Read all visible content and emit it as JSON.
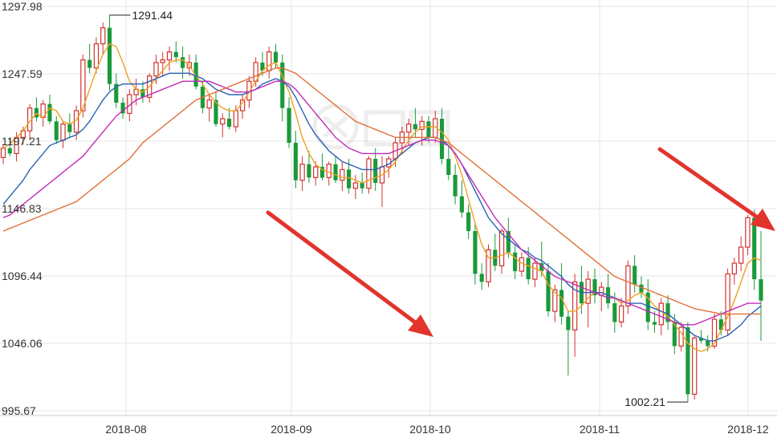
{
  "chart_data": {
    "type": "candlestick",
    "y_ticks": [
      "1297.98",
      "1247.59",
      "1197.21",
      "1146.83",
      "1096.44",
      "1046.06",
      "995.67"
    ],
    "ylim": [
      995.67,
      1297.98
    ],
    "x_ticks": [
      "2018-08",
      "2018-09",
      "2018-10",
      "2018-11",
      "2018-12"
    ],
    "annotations": [
      {
        "label": "1291.44",
        "value": 1291.44,
        "type": "high"
      },
      {
        "label": "1002.21",
        "value": 1002.21,
        "type": "low"
      }
    ],
    "colors": {
      "up": "#d0332e",
      "down": "#1a9a3a",
      "ma1": "#f0a020",
      "ma2": "#2c62b4",
      "ma3": "#c02ab8",
      "ma4": "#e0703a",
      "arrow": "#e2342b",
      "grid": "#e6e6e6"
    },
    "candles": [
      [
        1185,
        1195,
        1180,
        1192
      ],
      [
        1192,
        1200,
        1186,
        1188
      ],
      [
        1188,
        1204,
        1182,
        1200
      ],
      [
        1200,
        1208,
        1195,
        1205
      ],
      [
        1205,
        1225,
        1198,
        1222
      ],
      [
        1222,
        1230,
        1212,
        1215
      ],
      [
        1215,
        1228,
        1208,
        1225
      ],
      [
        1225,
        1232,
        1210,
        1212
      ],
      [
        1212,
        1216,
        1195,
        1198
      ],
      [
        1198,
        1212,
        1192,
        1210
      ],
      [
        1210,
        1218,
        1200,
        1204
      ],
      [
        1204,
        1224,
        1198,
        1220
      ],
      [
        1220,
        1262,
        1215,
        1258
      ],
      [
        1258,
        1270,
        1248,
        1252
      ],
      [
        1252,
        1275,
        1248,
        1270
      ],
      [
        1270,
        1286,
        1262,
        1282
      ],
      [
        1282,
        1291.44,
        1235,
        1240
      ],
      [
        1240,
        1248,
        1222,
        1226
      ],
      [
        1226,
        1230,
        1214,
        1218
      ],
      [
        1218,
        1236,
        1212,
        1232
      ],
      [
        1232,
        1244,
        1224,
        1236
      ],
      [
        1236,
        1242,
        1226,
        1230
      ],
      [
        1230,
        1248,
        1226,
        1246
      ],
      [
        1246,
        1262,
        1240,
        1256
      ],
      [
        1256,
        1264,
        1246,
        1258
      ],
      [
        1258,
        1268,
        1250,
        1264
      ],
      [
        1264,
        1272,
        1256,
        1260
      ],
      [
        1260,
        1268,
        1244,
        1252
      ],
      [
        1252,
        1262,
        1246,
        1256
      ],
      [
        1256,
        1262,
        1236,
        1238
      ],
      [
        1238,
        1242,
        1218,
        1222
      ],
      [
        1222,
        1232,
        1212,
        1228
      ],
      [
        1228,
        1234,
        1208,
        1210
      ],
      [
        1210,
        1218,
        1200,
        1214
      ],
      [
        1214,
        1222,
        1206,
        1208
      ],
      [
        1208,
        1224,
        1204,
        1220
      ],
      [
        1220,
        1232,
        1214,
        1228
      ],
      [
        1228,
        1246,
        1222,
        1242
      ],
      [
        1242,
        1260,
        1238,
        1256
      ],
      [
        1256,
        1264,
        1246,
        1250
      ],
      [
        1250,
        1268,
        1244,
        1264
      ],
      [
        1264,
        1270,
        1252,
        1256
      ],
      [
        1256,
        1262,
        1212,
        1222
      ],
      [
        1222,
        1230,
        1192,
        1196
      ],
      [
        1196,
        1205,
        1162,
        1168
      ],
      [
        1168,
        1186,
        1160,
        1180
      ],
      [
        1180,
        1190,
        1166,
        1170
      ],
      [
        1170,
        1182,
        1164,
        1178
      ],
      [
        1178,
        1188,
        1168,
        1170
      ],
      [
        1170,
        1182,
        1164,
        1180
      ],
      [
        1180,
        1186,
        1166,
        1168
      ],
      [
        1168,
        1182,
        1160,
        1176
      ],
      [
        1176,
        1184,
        1158,
        1162
      ],
      [
        1162,
        1172,
        1154,
        1166
      ],
      [
        1166,
        1174,
        1158,
        1162
      ],
      [
        1162,
        1186,
        1158,
        1184
      ],
      [
        1184,
        1192,
        1160,
        1166
      ],
      [
        1166,
        1186,
        1148,
        1178
      ],
      [
        1178,
        1186,
        1170,
        1184
      ],
      [
        1184,
        1200,
        1178,
        1196
      ],
      [
        1196,
        1208,
        1188,
        1204
      ],
      [
        1204,
        1214,
        1194,
        1210
      ],
      [
        1210,
        1222,
        1200,
        1206
      ],
      [
        1206,
        1216,
        1194,
        1212
      ],
      [
        1212,
        1216,
        1196,
        1200
      ],
      [
        1200,
        1220,
        1196,
        1214
      ],
      [
        1214,
        1222,
        1180,
        1184
      ],
      [
        1184,
        1194,
        1168,
        1172
      ],
      [
        1172,
        1180,
        1150,
        1156
      ],
      [
        1156,
        1168,
        1140,
        1144
      ],
      [
        1144,
        1150,
        1124,
        1130
      ],
      [
        1130,
        1136,
        1090,
        1098
      ],
      [
        1098,
        1106,
        1086,
        1092
      ],
      [
        1092,
        1120,
        1088,
        1116
      ],
      [
        1116,
        1128,
        1100,
        1104
      ],
      [
        1104,
        1132,
        1098,
        1130
      ],
      [
        1130,
        1140,
        1110,
        1114
      ],
      [
        1114,
        1120,
        1094,
        1100
      ],
      [
        1100,
        1114,
        1096,
        1110
      ],
      [
        1110,
        1118,
        1090,
        1094
      ],
      [
        1094,
        1110,
        1088,
        1106
      ],
      [
        1106,
        1122,
        1096,
        1100
      ],
      [
        1100,
        1106,
        1066,
        1070
      ],
      [
        1070,
        1090,
        1062,
        1086
      ],
      [
        1086,
        1106,
        1060,
        1066
      ],
      [
        1066,
        1070,
        1022,
        1056
      ],
      [
        1056,
        1098,
        1036,
        1092
      ],
      [
        1092,
        1104,
        1068,
        1076
      ],
      [
        1076,
        1100,
        1058,
        1094
      ],
      [
        1094,
        1102,
        1076,
        1082
      ],
      [
        1082,
        1092,
        1070,
        1088
      ],
      [
        1088,
        1098,
        1072,
        1076
      ],
      [
        1076,
        1084,
        1054,
        1062
      ],
      [
        1062,
        1080,
        1058,
        1074
      ],
      [
        1074,
        1108,
        1068,
        1104
      ],
      [
        1104,
        1112,
        1084,
        1090
      ],
      [
        1090,
        1096,
        1080,
        1084
      ],
      [
        1084,
        1094,
        1056,
        1062
      ],
      [
        1062,
        1070,
        1054,
        1060
      ],
      [
        1060,
        1080,
        1052,
        1076
      ],
      [
        1076,
        1082,
        1056,
        1062
      ],
      [
        1062,
        1068,
        1038,
        1044
      ],
      [
        1044,
        1062,
        1040,
        1058
      ],
      [
        1058,
        1062,
        1002.21,
        1008
      ],
      [
        1008,
        1052,
        1004,
        1050
      ],
      [
        1050,
        1056,
        1046,
        1048
      ],
      [
        1048,
        1052,
        1040,
        1044
      ],
      [
        1044,
        1068,
        1042,
        1064
      ],
      [
        1064,
        1070,
        1052,
        1056
      ],
      [
        1056,
        1102,
        1052,
        1098
      ],
      [
        1098,
        1110,
        1090,
        1106
      ],
      [
        1106,
        1126,
        1100,
        1118
      ],
      [
        1118,
        1142,
        1112,
        1140
      ],
      [
        1140,
        1146,
        1086,
        1094
      ],
      [
        1094,
        1130,
        1048,
        1078
      ]
    ],
    "ma_series": [
      [
        1192,
        1195,
        1200,
        1205,
        1212,
        1218,
        1215,
        1222,
        1220,
        1212,
        1210,
        1213,
        1222,
        1236,
        1250,
        1262,
        1270,
        1268,
        1256,
        1242,
        1236,
        1234,
        1238,
        1244,
        1250,
        1256,
        1258,
        1258,
        1254,
        1246,
        1240,
        1232,
        1226,
        1222,
        1220,
        1220,
        1226,
        1234,
        1242,
        1250,
        1254,
        1256,
        1246,
        1234,
        1218,
        1200,
        1188,
        1180,
        1176,
        1174,
        1172,
        1170,
        1170,
        1168,
        1166,
        1168,
        1170,
        1172,
        1176,
        1182,
        1190,
        1198,
        1204,
        1208,
        1208,
        1208,
        1204,
        1198,
        1186,
        1172,
        1154,
        1136,
        1120,
        1110,
        1110,
        1112,
        1114,
        1110,
        1106,
        1104,
        1102,
        1100,
        1090,
        1084,
        1080,
        1070,
        1070,
        1074,
        1080,
        1084,
        1084,
        1082,
        1080,
        1076,
        1078,
        1082,
        1084,
        1080,
        1074,
        1070,
        1066,
        1060,
        1054,
        1046,
        1042,
        1040,
        1042,
        1046,
        1056,
        1066,
        1078,
        1092,
        1106,
        1110,
        1108
      ],
      [
        1150,
        1156,
        1162,
        1168,
        1176,
        1182,
        1188,
        1194,
        1196,
        1198,
        1200,
        1202,
        1206,
        1212,
        1220,
        1228,
        1234,
        1238,
        1240,
        1240,
        1240,
        1240,
        1242,
        1244,
        1246,
        1248,
        1248,
        1248,
        1248,
        1246,
        1244,
        1240,
        1236,
        1234,
        1232,
        1232,
        1232,
        1234,
        1236,
        1240,
        1242,
        1244,
        1242,
        1238,
        1230,
        1220,
        1210,
        1202,
        1196,
        1190,
        1186,
        1182,
        1180,
        1178,
        1176,
        1176,
        1176,
        1178,
        1180,
        1184,
        1188,
        1192,
        1196,
        1198,
        1200,
        1200,
        1198,
        1194,
        1188,
        1180,
        1170,
        1160,
        1150,
        1140,
        1134,
        1128,
        1124,
        1120,
        1116,
        1114,
        1110,
        1108,
        1104,
        1100,
        1096,
        1090,
        1086,
        1084,
        1084,
        1084,
        1084,
        1082,
        1080,
        1078,
        1076,
        1076,
        1076,
        1074,
        1072,
        1070,
        1068,
        1064,
        1060,
        1056,
        1052,
        1050,
        1048,
        1048,
        1050,
        1052,
        1056,
        1060,
        1066,
        1070,
        1074
      ],
      [
        1140,
        1142,
        1146,
        1150,
        1154,
        1158,
        1162,
        1166,
        1170,
        1174,
        1178,
        1182,
        1186,
        1192,
        1198,
        1204,
        1210,
        1216,
        1220,
        1224,
        1228,
        1230,
        1232,
        1234,
        1236,
        1238,
        1240,
        1242,
        1242,
        1242,
        1242,
        1242,
        1240,
        1238,
        1236,
        1234,
        1234,
        1234,
        1236,
        1238,
        1240,
        1242,
        1242,
        1240,
        1236,
        1230,
        1224,
        1218,
        1212,
        1206,
        1200,
        1196,
        1192,
        1190,
        1188,
        1188,
        1188,
        1188,
        1188,
        1190,
        1192,
        1194,
        1196,
        1198,
        1198,
        1198,
        1196,
        1194,
        1188,
        1180,
        1172,
        1164,
        1156,
        1148,
        1140,
        1134,
        1128,
        1122,
        1116,
        1112,
        1108,
        1104,
        1100,
        1096,
        1094,
        1092,
        1090,
        1088,
        1086,
        1084,
        1082,
        1080,
        1080,
        1078,
        1076,
        1074,
        1072,
        1070,
        1068,
        1066,
        1064,
        1062,
        1060,
        1060,
        1060,
        1062,
        1064,
        1066,
        1068,
        1070,
        1072,
        1074,
        1076,
        1076,
        1076
      ],
      [
        1130,
        1132,
        1134,
        1136,
        1138,
        1140,
        1142,
        1144,
        1146,
        1148,
        1150,
        1152,
        1156,
        1160,
        1164,
        1168,
        1172,
        1176,
        1180,
        1184,
        1190,
        1196,
        1200,
        1204,
        1208,
        1212,
        1216,
        1220,
        1224,
        1228,
        1230,
        1232,
        1234,
        1236,
        1238,
        1240,
        1242,
        1244,
        1246,
        1248,
        1250,
        1252,
        1252,
        1250,
        1248,
        1244,
        1240,
        1236,
        1232,
        1228,
        1224,
        1220,
        1216,
        1212,
        1210,
        1208,
        1206,
        1204,
        1202,
        1200,
        1200,
        1200,
        1200,
        1200,
        1200,
        1200,
        1198,
        1196,
        1192,
        1188,
        1184,
        1180,
        1176,
        1172,
        1168,
        1164,
        1160,
        1156,
        1152,
        1148,
        1144,
        1140,
        1136,
        1132,
        1128,
        1124,
        1120,
        1116,
        1112,
        1108,
        1104,
        1100,
        1096,
        1094,
        1092,
        1090,
        1088,
        1086,
        1084,
        1082,
        1080,
        1078,
        1076,
        1074,
        1072,
        1071,
        1070,
        1069,
        1068,
        1068,
        1068,
        1068,
        1068,
        1068,
        1068
      ]
    ],
    "grid": true
  }
}
